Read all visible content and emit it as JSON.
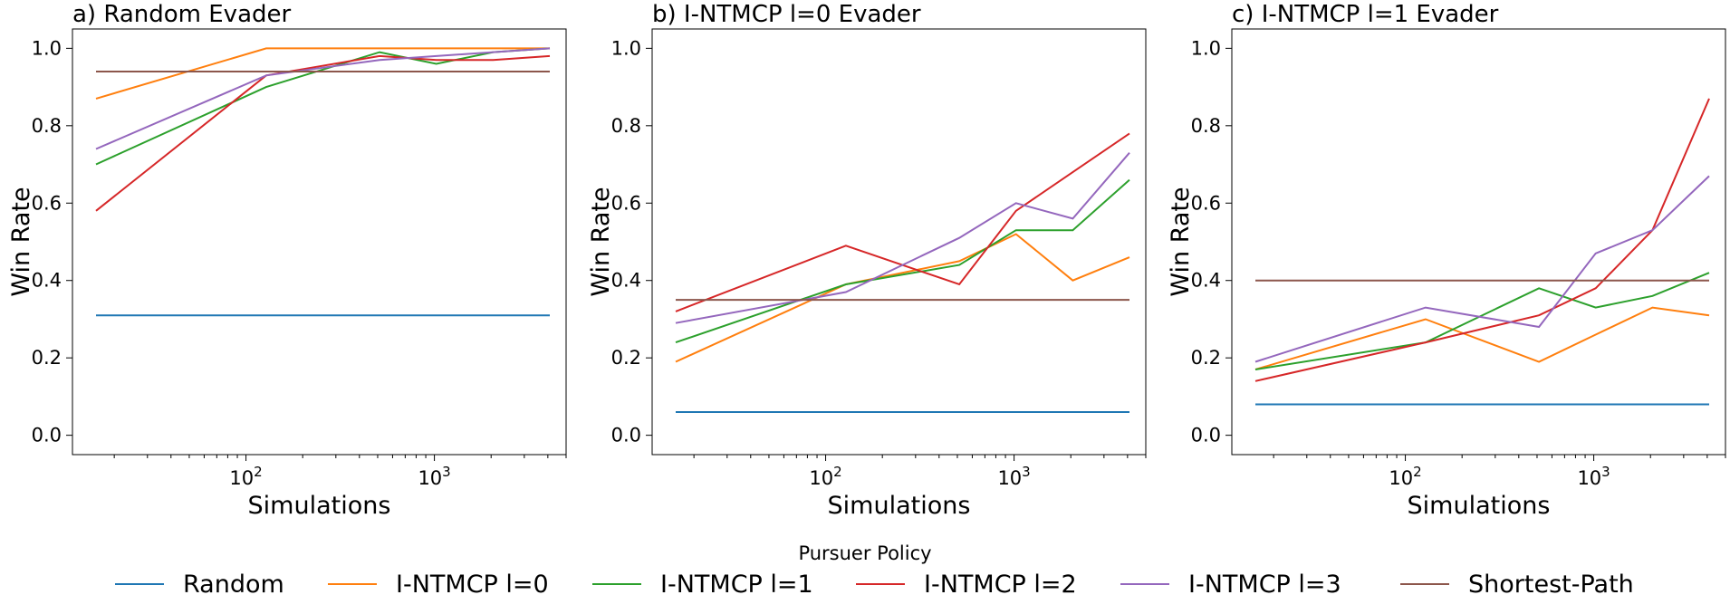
{
  "chart_data": [
    {
      "type": "line",
      "title": "a) Random Evader",
      "xlabel": "Simulations",
      "ylabel": "Win Rate",
      "xscale": "log",
      "xlim": [
        12,
        5000
      ],
      "ylim": [
        -0.05,
        1.05
      ],
      "yticks": [
        0.0,
        0.2,
        0.4,
        0.6,
        0.8,
        1.0
      ],
      "ytick_labels": [
        "0.0",
        "0.2",
        "0.4",
        "0.6",
        "0.8",
        "1.0"
      ],
      "xtick_labels": [
        {
          "base": "10",
          "exp": "2",
          "value": 100
        },
        {
          "base": "10",
          "exp": "3",
          "value": 1000
        }
      ],
      "x": [
        16,
        128,
        512,
        1024,
        2048,
        4096
      ],
      "series": [
        {
          "name": "Random",
          "values": [
            0.31,
            0.31,
            0.31,
            0.31,
            0.31,
            0.31
          ]
        },
        {
          "name": "I-NTMCP l=0",
          "values": [
            0.87,
            1.0,
            1.0,
            1.0,
            1.0,
            1.0
          ]
        },
        {
          "name": "I-NTMCP l=1",
          "values": [
            0.7,
            0.9,
            0.99,
            0.96,
            0.99,
            1.0
          ]
        },
        {
          "name": "I-NTMCP l=2",
          "values": [
            0.58,
            0.93,
            0.98,
            0.97,
            0.97,
            0.98
          ]
        },
        {
          "name": "I-NTMCP l=3",
          "values": [
            0.74,
            0.93,
            0.97,
            0.98,
            0.99,
            1.0
          ]
        },
        {
          "name": "Shortest-Path",
          "values": [
            0.94,
            0.94,
            0.94,
            0.94,
            0.94,
            0.94
          ]
        }
      ]
    },
    {
      "type": "line",
      "title": "b) I-NTMCP l=0 Evader",
      "xlabel": "Simulations",
      "ylabel": "Win Rate",
      "xscale": "log",
      "xlim": [
        12,
        5000
      ],
      "ylim": [
        -0.05,
        1.05
      ],
      "yticks": [
        0.0,
        0.2,
        0.4,
        0.6,
        0.8,
        1.0
      ],
      "ytick_labels": [
        "0.0",
        "0.2",
        "0.4",
        "0.6",
        "0.8",
        "1.0"
      ],
      "xtick_labels": [
        {
          "base": "10",
          "exp": "2",
          "value": 100
        },
        {
          "base": "10",
          "exp": "3",
          "value": 1000
        }
      ],
      "x": [
        16,
        128,
        512,
        1024,
        2048,
        4096
      ],
      "series": [
        {
          "name": "Random",
          "values": [
            0.06,
            0.06,
            0.06,
            0.06,
            0.06,
            0.06
          ]
        },
        {
          "name": "I-NTMCP l=0",
          "values": [
            0.19,
            0.39,
            0.45,
            0.52,
            0.4,
            0.46
          ]
        },
        {
          "name": "I-NTMCP l=1",
          "values": [
            0.24,
            0.39,
            0.44,
            0.53,
            0.53,
            0.66
          ]
        },
        {
          "name": "I-NTMCP l=2",
          "values": [
            0.32,
            0.49,
            0.39,
            0.58,
            0.68,
            0.78
          ]
        },
        {
          "name": "I-NTMCP l=3",
          "values": [
            0.29,
            0.37,
            0.51,
            0.6,
            0.56,
            0.73
          ]
        },
        {
          "name": "Shortest-Path",
          "values": [
            0.35,
            0.35,
            0.35,
            0.35,
            0.35,
            0.35
          ]
        }
      ]
    },
    {
      "type": "line",
      "title": "c) I-NTMCP l=1 Evader",
      "xlabel": "Simulations",
      "ylabel": "Win Rate",
      "xscale": "log",
      "xlim": [
        12,
        5000
      ],
      "ylim": [
        -0.05,
        1.05
      ],
      "yticks": [
        0.0,
        0.2,
        0.4,
        0.6,
        0.8,
        1.0
      ],
      "ytick_labels": [
        "0.0",
        "0.2",
        "0.4",
        "0.6",
        "0.8",
        "1.0"
      ],
      "xtick_labels": [
        {
          "base": "10",
          "exp": "2",
          "value": 100
        },
        {
          "base": "10",
          "exp": "3",
          "value": 1000
        }
      ],
      "x": [
        16,
        128,
        512,
        1024,
        2048,
        4096
      ],
      "series": [
        {
          "name": "Random",
          "values": [
            0.08,
            0.08,
            0.08,
            0.08,
            0.08,
            0.08
          ]
        },
        {
          "name": "I-NTMCP l=0",
          "values": [
            0.17,
            0.3,
            0.19,
            0.26,
            0.33,
            0.31
          ]
        },
        {
          "name": "I-NTMCP l=1",
          "values": [
            0.17,
            0.24,
            0.38,
            0.33,
            0.36,
            0.42
          ]
        },
        {
          "name": "I-NTMCP l=2",
          "values": [
            0.14,
            0.24,
            0.31,
            0.38,
            0.53,
            0.87
          ]
        },
        {
          "name": "I-NTMCP l=3",
          "values": [
            0.19,
            0.33,
            0.28,
            0.47,
            0.53,
            0.67
          ]
        },
        {
          "name": "Shortest-Path",
          "values": [
            0.4,
            0.4,
            0.4,
            0.4,
            0.4,
            0.4
          ]
        }
      ]
    }
  ],
  "legend": {
    "title": "Pursuer Policy",
    "placement": "bottom-center",
    "entries": [
      "Random",
      "I-NTMCP l=0",
      "I-NTMCP l=1",
      "I-NTMCP l=2",
      "I-NTMCP l=3",
      "Shortest-Path"
    ]
  },
  "colors": {
    "Random": "#1f77b4",
    "I-NTMCP l=0": "#ff7f0e",
    "I-NTMCP l=1": "#2ca02c",
    "I-NTMCP l=2": "#d62728",
    "I-NTMCP l=3": "#9467bd",
    "Shortest-Path": "#8c564b"
  }
}
